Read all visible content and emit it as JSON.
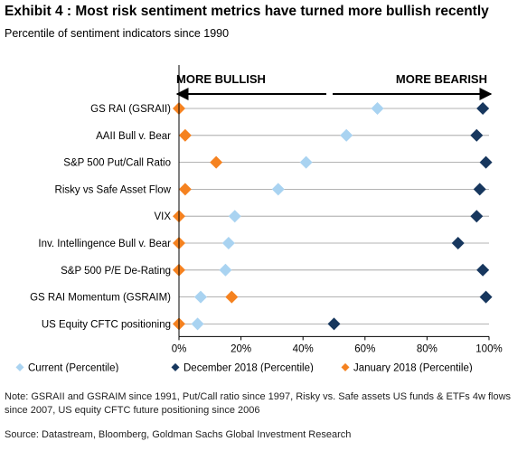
{
  "header": {
    "title": "Exhibit 4 : Most risk sentiment metrics have turned more bullish recently",
    "subtitle": "Percentile of sentiment indicators since 1990"
  },
  "chart_data": {
    "type": "scatter",
    "direction_labels": {
      "left": "MORE BULLISH",
      "right": "MORE BEARISH"
    },
    "categories": [
      "GS RAI (GSRAII)",
      "AAII Bull v. Bear",
      "S&P 500 Put/Call Ratio",
      "Risky vs Safe Asset Flow",
      "VIX",
      "Inv. Intellingence Bull v. Bear",
      "S&P 500 P/E De-Rating",
      "GS RAI Momentum (GSRAIM)",
      "US Equity CFTC positioning"
    ],
    "xlim": [
      0,
      100
    ],
    "xticks": [
      "0%",
      "20%",
      "40%",
      "60%",
      "80%",
      "100%"
    ],
    "series": [
      {
        "name": "Current (Percentile)",
        "color": "#a9d3f1",
        "values": [
          64,
          54,
          41,
          32,
          18,
          16,
          15,
          7,
          6
        ]
      },
      {
        "name": "December 2018 (Percentile)",
        "color": "#17375e",
        "values": [
          98,
          96,
          99,
          97,
          96,
          90,
          98,
          99,
          50
        ]
      },
      {
        "name": "January 2018 (Percentile)",
        "color": "#f58220",
        "values": [
          0,
          2,
          12,
          2,
          0,
          0,
          0,
          17,
          0
        ]
      }
    ],
    "legend_position": "bottom",
    "grid": false
  },
  "footer": {
    "note": "Note: GSRAII and GSRAIM since 1991, Put/Call ratio since 1997, Risky vs. Safe assets US funds & ETFs 4w flows since 2007, US equity CFTC future positioning since 2006",
    "source": "Source: Datastream, Bloomberg, Goldman Sachs Global Investment Research"
  }
}
